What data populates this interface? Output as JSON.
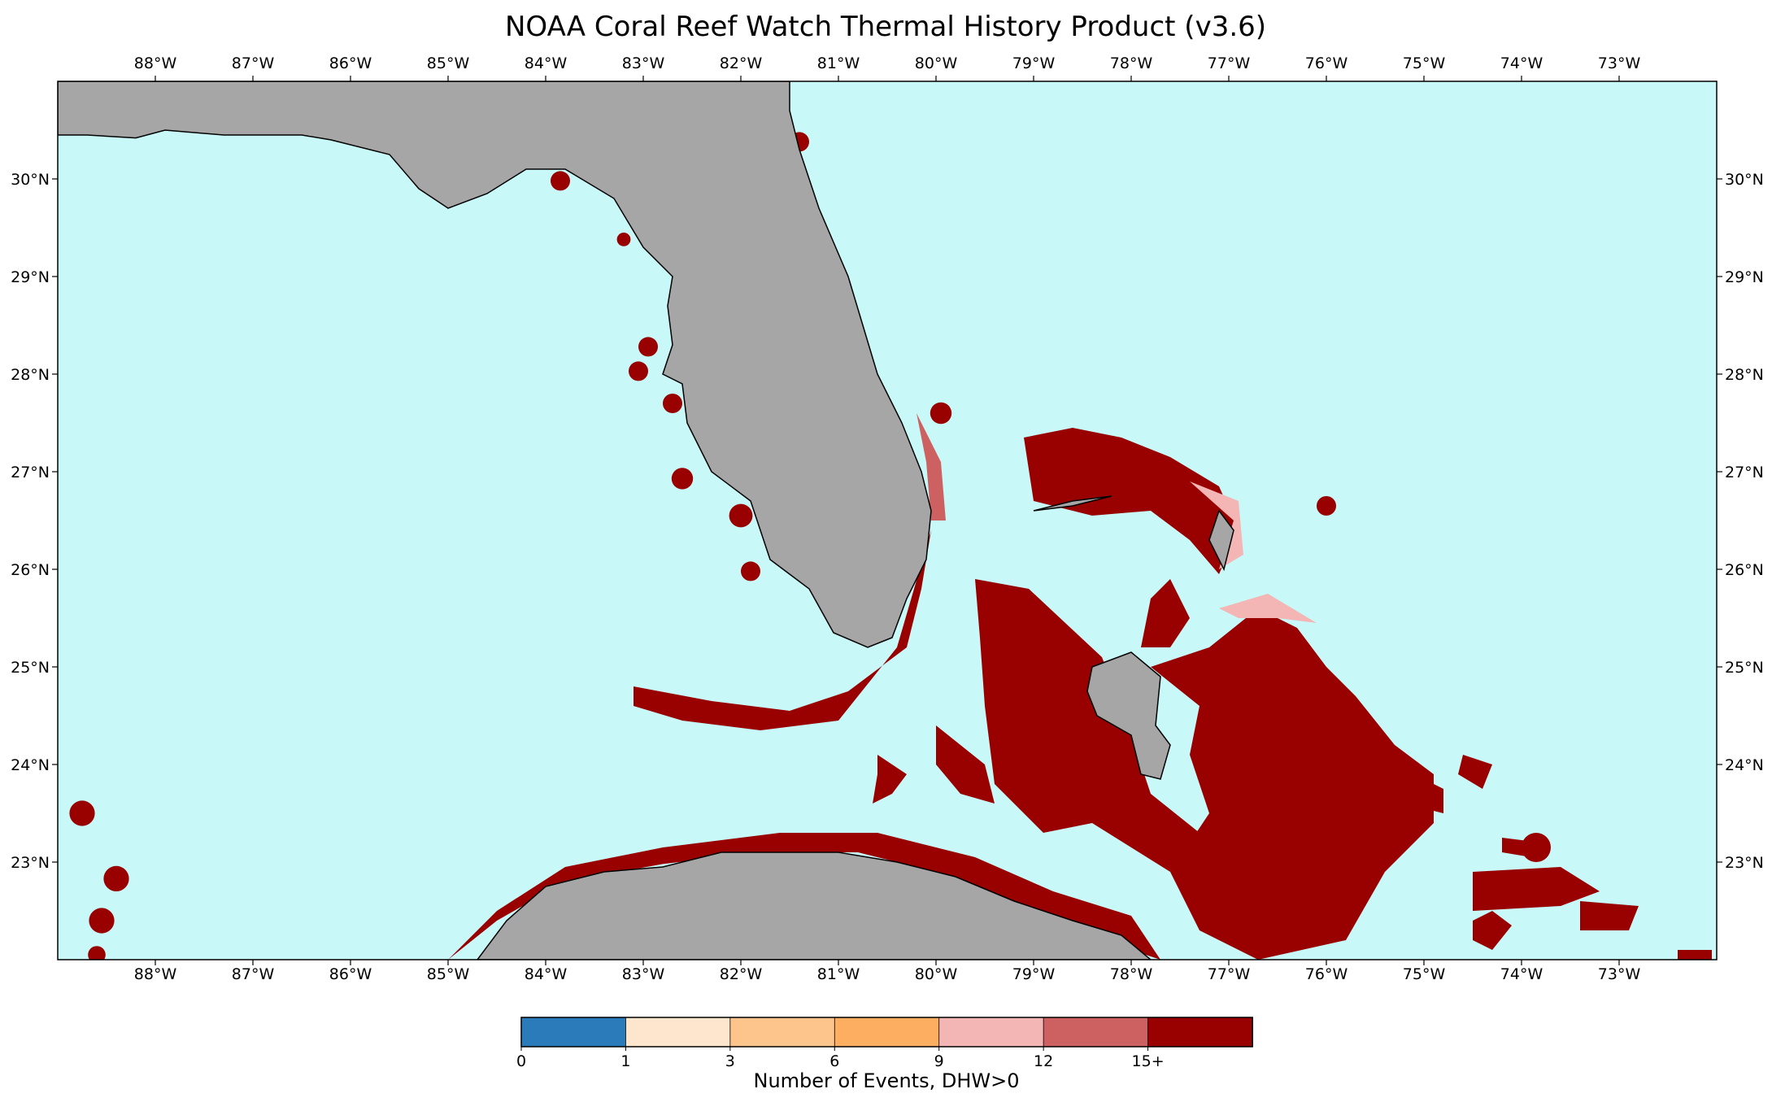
{
  "title": "NOAA Coral Reef Watch Thermal History Product (v3.6)",
  "map": {
    "ocean_color": "#c8f8f8",
    "land_color": "#a6a6a6",
    "lon_range": [
      -89.0,
      -72.0
    ],
    "lat_range": [
      22.0,
      31.0
    ],
    "lon_ticks": [
      {
        "value": -88,
        "label": "88°W"
      },
      {
        "value": -87,
        "label": "87°W"
      },
      {
        "value": -86,
        "label": "86°W"
      },
      {
        "value": -85,
        "label": "85°W"
      },
      {
        "value": -84,
        "label": "84°W"
      },
      {
        "value": -83,
        "label": "83°W"
      },
      {
        "value": -82,
        "label": "82°W"
      },
      {
        "value": -81,
        "label": "81°W"
      },
      {
        "value": -80,
        "label": "80°W"
      },
      {
        "value": -79,
        "label": "79°W"
      },
      {
        "value": -78,
        "label": "78°W"
      },
      {
        "value": -77,
        "label": "77°W"
      },
      {
        "value": -76,
        "label": "76°W"
      },
      {
        "value": -75,
        "label": "75°W"
      },
      {
        "value": -74,
        "label": "74°W"
      },
      {
        "value": -73,
        "label": "73°W"
      }
    ],
    "lat_ticks": [
      {
        "value": 23,
        "label": "23°N"
      },
      {
        "value": 24,
        "label": "24°N"
      },
      {
        "value": 25,
        "label": "25°N"
      },
      {
        "value": 26,
        "label": "26°N"
      },
      {
        "value": 27,
        "label": "27°N"
      },
      {
        "value": 28,
        "label": "28°N"
      },
      {
        "value": 29,
        "label": "29°N"
      },
      {
        "value": 30,
        "label": "30°N"
      }
    ],
    "land": {
      "florida": [
        [
          -89.0,
          30.45
        ],
        [
          -88.7,
          30.45
        ],
        [
          -88.2,
          30.42
        ],
        [
          -87.9,
          30.5
        ],
        [
          -87.3,
          30.45
        ],
        [
          -86.5,
          30.45
        ],
        [
          -86.2,
          30.4
        ],
        [
          -85.6,
          30.25
        ],
        [
          -85.3,
          29.9
        ],
        [
          -85.0,
          29.7
        ],
        [
          -84.6,
          29.85
        ],
        [
          -84.2,
          30.1
        ],
        [
          -83.8,
          30.1
        ],
        [
          -83.3,
          29.8
        ],
        [
          -83.0,
          29.3
        ],
        [
          -82.7,
          29.0
        ],
        [
          -82.75,
          28.7
        ],
        [
          -82.7,
          28.3
        ],
        [
          -82.8,
          28.0
        ],
        [
          -82.6,
          27.9
        ],
        [
          -82.55,
          27.5
        ],
        [
          -82.3,
          27.0
        ],
        [
          -81.9,
          26.7
        ],
        [
          -81.7,
          26.1
        ],
        [
          -81.3,
          25.8
        ],
        [
          -81.05,
          25.35
        ],
        [
          -80.7,
          25.2
        ],
        [
          -80.45,
          25.3
        ],
        [
          -80.3,
          25.7
        ],
        [
          -80.1,
          26.1
        ],
        [
          -80.05,
          26.6
        ],
        [
          -80.15,
          27.0
        ],
        [
          -80.35,
          27.5
        ],
        [
          -80.6,
          28.0
        ],
        [
          -80.75,
          28.5
        ],
        [
          -80.9,
          29.0
        ],
        [
          -81.2,
          29.7
        ],
        [
          -81.4,
          30.3
        ],
        [
          -81.5,
          30.7
        ],
        [
          -81.5,
          31.0
        ],
        [
          -89.0,
          31.0
        ]
      ],
      "cuba": [
        [
          -84.7,
          22.0
        ],
        [
          -84.4,
          22.4
        ],
        [
          -84.0,
          22.75
        ],
        [
          -83.4,
          22.9
        ],
        [
          -82.8,
          22.95
        ],
        [
          -82.2,
          23.1
        ],
        [
          -81.6,
          23.1
        ],
        [
          -81.0,
          23.1
        ],
        [
          -80.4,
          23.0
        ],
        [
          -79.8,
          22.85
        ],
        [
          -79.2,
          22.6
        ],
        [
          -78.6,
          22.4
        ],
        [
          -78.1,
          22.25
        ],
        [
          -77.8,
          22.0
        ]
      ],
      "andros": [
        [
          -78.4,
          25.0
        ],
        [
          -78.0,
          25.15
        ],
        [
          -77.7,
          24.9
        ],
        [
          -77.75,
          24.4
        ],
        [
          -77.6,
          24.2
        ],
        [
          -77.7,
          23.85
        ],
        [
          -77.9,
          23.9
        ],
        [
          -78.0,
          24.3
        ],
        [
          -78.35,
          24.5
        ],
        [
          -78.45,
          24.75
        ]
      ],
      "grand_bahama": [
        [
          -79.0,
          26.6
        ],
        [
          -78.6,
          26.65
        ],
        [
          -78.2,
          26.75
        ],
        [
          -78.6,
          26.7
        ]
      ],
      "great_abaco": [
        [
          -77.1,
          26.6
        ],
        [
          -76.95,
          26.4
        ],
        [
          -77.05,
          26.0
        ],
        [
          -77.2,
          26.3
        ]
      ]
    },
    "events": [
      {
        "shape": [
          [
            -83.1,
            24.8
          ],
          [
            -82.3,
            24.65
          ],
          [
            -81.5,
            24.55
          ],
          [
            -80.9,
            24.75
          ],
          [
            -80.3,
            25.2
          ],
          [
            -80.15,
            25.8
          ],
          [
            -80.05,
            26.4
          ],
          [
            -80.4,
            25.2
          ],
          [
            -81.0,
            24.45
          ],
          [
            -81.8,
            24.35
          ],
          [
            -82.6,
            24.45
          ],
          [
            -83.1,
            24.6
          ]
        ],
        "level": "15+"
      },
      {
        "shape": [
          [
            -80.2,
            27.6
          ],
          [
            -79.95,
            27.1
          ],
          [
            -79.9,
            26.5
          ],
          [
            -80.05,
            26.5
          ],
          [
            -80.1,
            27.1
          ]
        ],
        "level": "12"
      },
      {
        "shape": [
          [
            -85.0,
            22.0
          ],
          [
            -84.5,
            22.5
          ],
          [
            -83.8,
            22.95
          ],
          [
            -82.8,
            23.15
          ],
          [
            -81.6,
            23.3
          ],
          [
            -80.6,
            23.3
          ],
          [
            -79.6,
            23.05
          ],
          [
            -78.8,
            22.7
          ],
          [
            -78.0,
            22.45
          ],
          [
            -77.7,
            22.0
          ],
          [
            -78.3,
            22.2
          ],
          [
            -79.0,
            22.5
          ],
          [
            -79.8,
            22.85
          ],
          [
            -80.8,
            23.1
          ],
          [
            -81.8,
            23.1
          ],
          [
            -82.8,
            22.98
          ],
          [
            -83.8,
            22.8
          ],
          [
            -84.5,
            22.4
          ]
        ],
        "level": "15+"
      },
      {
        "shape": [
          [
            -79.1,
            27.35
          ],
          [
            -78.6,
            27.45
          ],
          [
            -78.1,
            27.35
          ],
          [
            -77.6,
            27.15
          ],
          [
            -77.1,
            26.85
          ],
          [
            -76.9,
            26.4
          ],
          [
            -77.1,
            25.95
          ],
          [
            -77.4,
            26.3
          ],
          [
            -77.8,
            26.6
          ],
          [
            -78.4,
            26.55
          ],
          [
            -79.0,
            26.7
          ]
        ],
        "level": "15+"
      },
      {
        "shape": [
          [
            -77.4,
            26.9
          ],
          [
            -76.9,
            26.7
          ],
          [
            -76.85,
            26.15
          ],
          [
            -77.1,
            26.0
          ],
          [
            -76.95,
            26.5
          ]
        ],
        "level": "9"
      },
      {
        "shape": [
          [
            -79.6,
            25.9
          ],
          [
            -79.05,
            25.8
          ],
          [
            -78.3,
            25.1
          ],
          [
            -78.1,
            24.6
          ],
          [
            -77.8,
            23.7
          ],
          [
            -77.3,
            23.3
          ],
          [
            -77.6,
            22.9
          ],
          [
            -78.4,
            23.4
          ],
          [
            -78.9,
            23.3
          ],
          [
            -79.4,
            23.8
          ],
          [
            -79.5,
            24.6
          ],
          [
            -79.55,
            25.3
          ]
        ],
        "level": "15+"
      },
      {
        "shape": [
          [
            -77.8,
            25.7
          ],
          [
            -77.6,
            25.9
          ],
          [
            -77.4,
            25.5
          ],
          [
            -77.6,
            25.2
          ],
          [
            -77.9,
            25.2
          ]
        ],
        "level": "15+"
      },
      {
        "shape": [
          [
            -77.8,
            25.0
          ],
          [
            -77.2,
            25.2
          ],
          [
            -76.7,
            25.6
          ],
          [
            -76.3,
            25.4
          ],
          [
            -76.0,
            25.0
          ],
          [
            -75.7,
            24.7
          ],
          [
            -75.3,
            24.2
          ],
          [
            -74.9,
            23.9
          ],
          [
            -74.9,
            23.4
          ],
          [
            -75.4,
            22.9
          ],
          [
            -75.8,
            22.2
          ],
          [
            -76.7,
            22.0
          ],
          [
            -77.3,
            22.3
          ],
          [
            -77.6,
            22.9
          ],
          [
            -77.2,
            23.5
          ],
          [
            -77.4,
            24.1
          ],
          [
            -77.3,
            24.6
          ]
        ],
        "level": "15+"
      },
      {
        "shape": [
          [
            -77.1,
            25.6
          ],
          [
            -76.6,
            25.75
          ],
          [
            -76.1,
            25.45
          ],
          [
            -76.5,
            25.5
          ],
          [
            -76.9,
            25.5
          ]
        ],
        "level": "9"
      },
      {
        "shape": [
          [
            -80.6,
            24.1
          ],
          [
            -80.3,
            23.9
          ],
          [
            -80.45,
            23.7
          ],
          [
            -80.65,
            23.6
          ],
          [
            -80.6,
            23.9
          ]
        ],
        "level": "15+"
      },
      {
        "shape": [
          [
            -80.0,
            24.4
          ],
          [
            -79.5,
            24.0
          ],
          [
            -79.4,
            23.6
          ],
          [
            -79.75,
            23.7
          ],
          [
            -80.0,
            24.0
          ]
        ],
        "level": "15+"
      },
      {
        "shape": [
          [
            -75.1,
            23.9
          ],
          [
            -74.8,
            23.75
          ],
          [
            -74.8,
            23.5
          ],
          [
            -75.2,
            23.6
          ]
        ],
        "level": "15+"
      },
      {
        "shape": [
          [
            -74.6,
            24.1
          ],
          [
            -74.3,
            24.0
          ],
          [
            -74.4,
            23.75
          ],
          [
            -74.65,
            23.9
          ]
        ],
        "level": "15+"
      },
      {
        "shape": [
          [
            -74.5,
            22.9
          ],
          [
            -73.6,
            22.95
          ],
          [
            -73.2,
            22.7
          ],
          [
            -73.6,
            22.55
          ],
          [
            -74.5,
            22.5
          ]
        ],
        "level": "15+"
      },
      {
        "shape": [
          [
            -74.2,
            23.25
          ],
          [
            -73.8,
            23.2
          ],
          [
            -73.9,
            23.05
          ],
          [
            -74.2,
            23.1
          ]
        ],
        "level": "15+"
      },
      {
        "shape": [
          [
            -73.4,
            22.6
          ],
          [
            -72.8,
            22.55
          ],
          [
            -72.9,
            22.3
          ],
          [
            -73.4,
            22.3
          ]
        ],
        "level": "15+"
      },
      {
        "shape": [
          [
            -74.5,
            22.4
          ],
          [
            -74.3,
            22.5
          ],
          [
            -74.1,
            22.35
          ],
          [
            -74.3,
            22.1
          ],
          [
            -74.5,
            22.2
          ]
        ],
        "level": "15+"
      },
      {
        "shape": [
          [
            -72.4,
            22.1
          ],
          [
            -72.05,
            22.1
          ],
          [
            -72.05,
            21.98
          ],
          [
            -72.4,
            21.98
          ]
        ],
        "level": "15+"
      }
    ],
    "spots": [
      {
        "lon": -81.4,
        "lat": 30.38,
        "r": 0.1
      },
      {
        "lon": -83.85,
        "lat": 29.98,
        "r": 0.1
      },
      {
        "lon": -83.2,
        "lat": 29.38,
        "r": 0.07
      },
      {
        "lon": -82.95,
        "lat": 28.28,
        "r": 0.1
      },
      {
        "lon": -83.05,
        "lat": 28.03,
        "r": 0.1
      },
      {
        "lon": -82.7,
        "lat": 27.7,
        "r": 0.1
      },
      {
        "lon": -82.6,
        "lat": 26.93,
        "r": 0.11
      },
      {
        "lon": -82.0,
        "lat": 26.55,
        "r": 0.12
      },
      {
        "lon": -81.9,
        "lat": 25.98,
        "r": 0.1
      },
      {
        "lon": -79.95,
        "lat": 27.6,
        "r": 0.11
      },
      {
        "lon": -76.0,
        "lat": 26.65,
        "r": 0.1
      },
      {
        "lon": -88.75,
        "lat": 23.5,
        "r": 0.13
      },
      {
        "lon": -88.4,
        "lat": 22.83,
        "r": 0.13
      },
      {
        "lon": -88.55,
        "lat": 22.4,
        "r": 0.13
      },
      {
        "lon": -88.6,
        "lat": 22.05,
        "r": 0.09
      },
      {
        "lon": -73.85,
        "lat": 23.15,
        "r": 0.15
      }
    ]
  },
  "colorbar": {
    "label": "Number of Events, DHW>0",
    "tick_labels": [
      "0",
      "1",
      "3",
      "6",
      "9",
      "12",
      "15+"
    ],
    "colors": [
      "#2b7bba",
      "#fee6ce",
      "#fdc48c",
      "#fdae61",
      "#f3b6b4",
      "#cd6161",
      "#990000"
    ]
  }
}
